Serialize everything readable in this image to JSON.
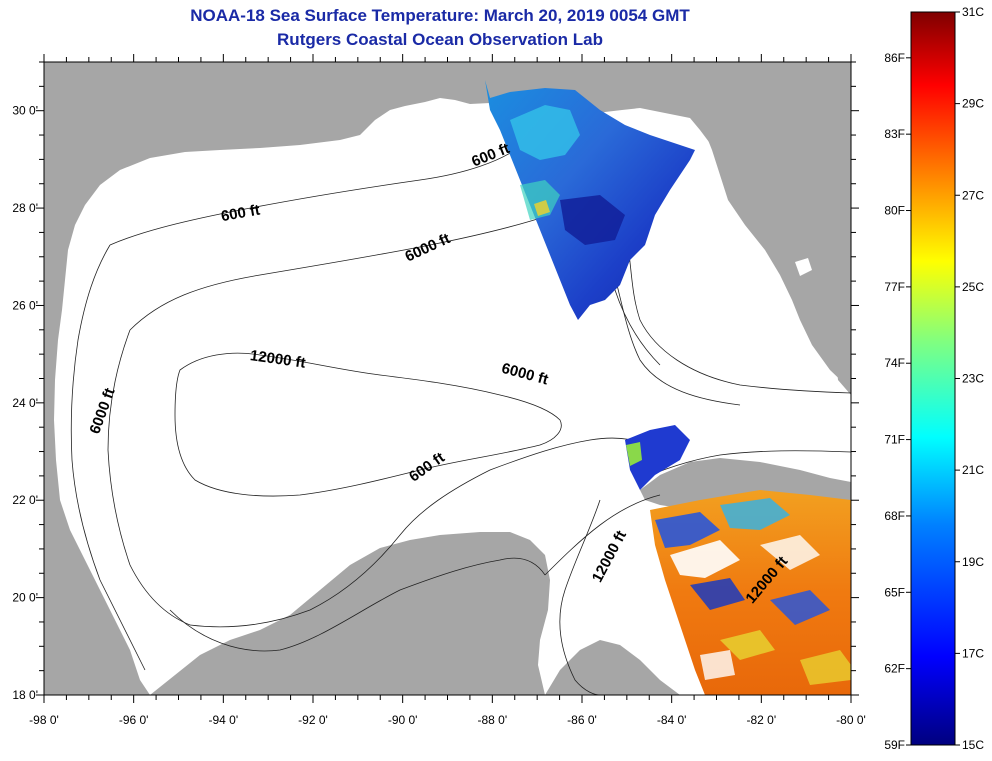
{
  "header": {
    "title": "NOAA-18 Sea Surface Temperature:  March 20, 2019 0054 GMT",
    "subtitle": "Rutgers Coastal Ocean Observation Lab"
  },
  "axes": {
    "lon_labels": [
      "-98 0'",
      "-96 0'",
      "-94 0'",
      "-92 0'",
      "-90 0'",
      "-88 0'",
      "-86 0'",
      "-84 0'",
      "-82 0'",
      "-80 0'"
    ],
    "lat_labels": [
      "30 0'",
      "28 0'",
      "26 0'",
      "24 0'",
      "22 0'",
      "20 0'",
      "18 0'"
    ],
    "lon_range": [
      -98,
      -80
    ],
    "lat_range": [
      18,
      31
    ]
  },
  "contours": {
    "labels": [
      {
        "text": "600 ft",
        "lon": -88.0,
        "lat": 29.0,
        "rotation": -22
      },
      {
        "text": "600 ft",
        "lon": -93.6,
        "lat": 27.8,
        "rotation": -10
      },
      {
        "text": "6000 ft",
        "lon": -89.4,
        "lat": 27.1,
        "rotation": -25
      },
      {
        "text": "12000 ft",
        "lon": -92.8,
        "lat": 24.8,
        "rotation": 8
      },
      {
        "text": "6000 ft",
        "lon": -87.3,
        "lat": 24.5,
        "rotation": 15
      },
      {
        "text": "6000 ft",
        "lon": -96.6,
        "lat": 23.8,
        "rotation": -70
      },
      {
        "text": "600 ft",
        "lon": -89.4,
        "lat": 22.6,
        "rotation": -35
      },
      {
        "text": "12000 ft",
        "lon": -85.3,
        "lat": 20.8,
        "rotation": -62
      },
      {
        "text": "12000 ft",
        "lon": -81.8,
        "lat": 20.3,
        "rotation": -50
      }
    ]
  },
  "colorbar": {
    "celsius": [
      "31C",
      "29C",
      "27C",
      "25C",
      "23C",
      "21C",
      "19C",
      "17C",
      "15C"
    ],
    "fahrenheit": [
      "86F",
      "83F",
      "80F",
      "77F",
      "74F",
      "71F",
      "68F",
      "65F",
      "62F",
      "59F"
    ],
    "celsius_range": [
      15,
      31
    ],
    "colors": [
      "#00007f",
      "#0000ff",
      "#0080ff",
      "#00ffff",
      "#80ff80",
      "#ffff00",
      "#ff8000",
      "#ff0000",
      "#7f0000"
    ]
  },
  "colors": {
    "land": "#a6a6a6",
    "ocean": "#ffffff",
    "title": "#1a2aa6",
    "warm_sst": "#f07a10",
    "cold_sst": "#1c3fc8"
  }
}
